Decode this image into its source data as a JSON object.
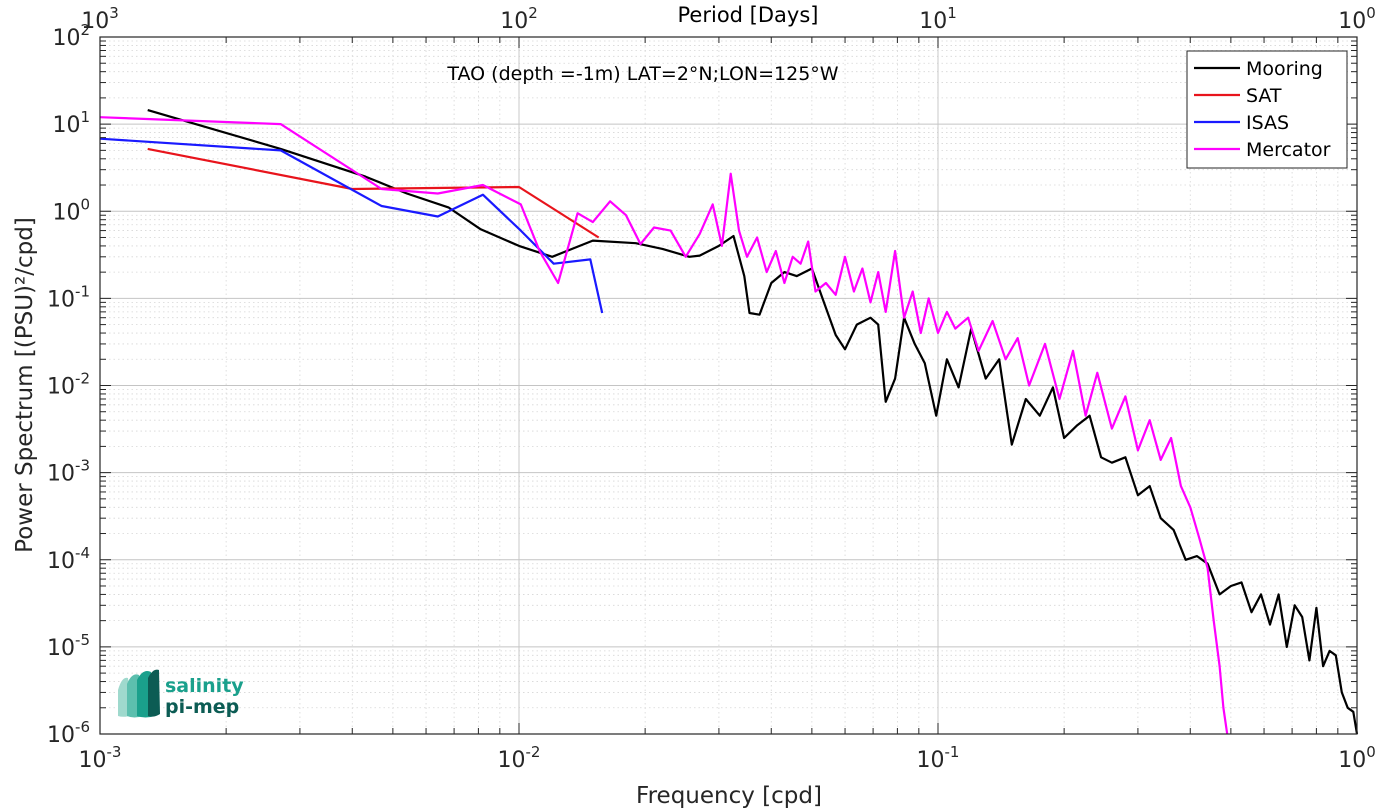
{
  "chart_data": {
    "type": "line",
    "xscale": "log",
    "yscale": "log",
    "xlabel": "Frequency [cpd]",
    "ylabel": "Power Spectrum [(PSU)²/cpd]",
    "top_xlabel": "Period [Days]",
    "annotation": "TAO (depth =-1m) LAT=2°N;LON=125°W",
    "xlim": [
      0.001,
      1
    ],
    "ylim": [
      1e-06,
      100
    ],
    "x_ticks": [
      {
        "value": 0.001,
        "base": "10",
        "exp": "-3"
      },
      {
        "value": 0.01,
        "base": "10",
        "exp": "-2"
      },
      {
        "value": 0.1,
        "base": "10",
        "exp": "-1"
      },
      {
        "value": 1,
        "base": "10",
        "exp": "0"
      }
    ],
    "top_ticks": [
      {
        "value": 0.001,
        "base": "10",
        "exp": "3"
      },
      {
        "value": 0.01,
        "base": "10",
        "exp": "2"
      },
      {
        "value": 0.1,
        "base": "10",
        "exp": "1"
      },
      {
        "value": 1,
        "base": "10",
        "exp": "0"
      }
    ],
    "y_ticks": [
      {
        "value": 100,
        "base": "10",
        "exp": "2"
      },
      {
        "value": 10,
        "base": "10",
        "exp": "1"
      },
      {
        "value": 1,
        "base": "10",
        "exp": "0"
      },
      {
        "value": 0.1,
        "base": "10",
        "exp": "-1"
      },
      {
        "value": 0.01,
        "base": "10",
        "exp": "-2"
      },
      {
        "value": 0.001,
        "base": "10",
        "exp": "-3"
      },
      {
        "value": 0.0001,
        "base": "10",
        "exp": "-4"
      },
      {
        "value": 1e-05,
        "base": "10",
        "exp": "-5"
      },
      {
        "value": 1e-06,
        "base": "10",
        "exp": "-6"
      }
    ],
    "grid": true,
    "legend_position": "top-right",
    "series": [
      {
        "name": "Mooring",
        "color": "#000000",
        "x": [
          0.0013,
          0.0027,
          0.0043,
          0.0054,
          0.0068,
          0.0081,
          0.01,
          0.012,
          0.015,
          0.019,
          0.022,
          0.0255,
          0.027,
          0.03,
          0.0325,
          0.0345,
          0.0355,
          0.0375,
          0.04,
          0.043,
          0.046,
          0.05,
          0.053,
          0.057,
          0.06,
          0.064,
          0.069,
          0.072,
          0.075,
          0.079,
          0.083,
          0.088,
          0.093,
          0.099,
          0.105,
          0.112,
          0.12,
          0.13,
          0.14,
          0.15,
          0.162,
          0.175,
          0.188,
          0.2,
          0.215,
          0.23,
          0.245,
          0.26,
          0.28,
          0.3,
          0.32,
          0.34,
          0.365,
          0.39,
          0.415,
          0.44,
          0.47,
          0.5,
          0.53,
          0.56,
          0.59,
          0.62,
          0.65,
          0.68,
          0.71,
          0.74,
          0.77,
          0.8,
          0.83,
          0.86,
          0.89,
          0.92,
          0.95,
          0.98,
          1.0
        ],
        "values": [
          14.5,
          5.2,
          2.5,
          1.6,
          1.1,
          0.62,
          0.4,
          0.3,
          0.46,
          0.43,
          0.37,
          0.3,
          0.31,
          0.4,
          0.52,
          0.18,
          0.068,
          0.065,
          0.15,
          0.2,
          0.18,
          0.22,
          0.1,
          0.038,
          0.026,
          0.05,
          0.06,
          0.05,
          0.0065,
          0.012,
          0.06,
          0.03,
          0.018,
          0.0045,
          0.02,
          0.0095,
          0.045,
          0.012,
          0.02,
          0.0021,
          0.007,
          0.0045,
          0.0095,
          0.0025,
          0.0035,
          0.0045,
          0.0015,
          0.0013,
          0.0015,
          0.00055,
          0.0007,
          0.0003,
          0.00022,
          0.0001,
          0.00011,
          9e-05,
          4e-05,
          5e-05,
          5.5e-05,
          2.5e-05,
          4e-05,
          1.8e-05,
          4e-05,
          1e-05,
          3e-05,
          2.2e-05,
          7e-06,
          2.8e-05,
          6e-06,
          9e-06,
          8e-06,
          3e-06,
          2e-06,
          1.8e-06,
          1e-06
        ]
      },
      {
        "name": "SAT",
        "color": "#e8141c",
        "x": [
          0.0013,
          0.004,
          0.01,
          0.0155
        ],
        "values": [
          5.2,
          1.8,
          1.9,
          0.5
        ]
      },
      {
        "name": "ISAS",
        "color": "#1a1aff",
        "x": [
          0.001,
          0.0027,
          0.0047,
          0.0064,
          0.0082,
          0.0101,
          0.0121,
          0.0148,
          0.0158
        ],
        "values": [
          6.8,
          5.0,
          1.15,
          0.87,
          1.55,
          0.6,
          0.25,
          0.28,
          0.068
        ]
      },
      {
        "name": "Mercator",
        "color": "#ff00ff",
        "x": [
          0.001,
          0.0027,
          0.0047,
          0.0064,
          0.0082,
          0.0101,
          0.0112,
          0.0124,
          0.0138,
          0.015,
          0.0165,
          0.018,
          0.0195,
          0.021,
          0.023,
          0.025,
          0.027,
          0.029,
          0.0305,
          0.032,
          0.0335,
          0.035,
          0.037,
          0.039,
          0.041,
          0.043,
          0.045,
          0.047,
          0.049,
          0.051,
          0.054,
          0.057,
          0.06,
          0.063,
          0.066,
          0.069,
          0.072,
          0.075,
          0.079,
          0.083,
          0.087,
          0.091,
          0.095,
          0.1,
          0.105,
          0.11,
          0.118,
          0.125,
          0.135,
          0.145,
          0.155,
          0.165,
          0.18,
          0.195,
          0.21,
          0.225,
          0.24,
          0.26,
          0.28,
          0.3,
          0.32,
          0.34,
          0.36,
          0.38,
          0.4,
          0.42,
          0.44,
          0.455,
          0.47,
          0.48,
          0.49
        ],
        "values": [
          12.0,
          10.0,
          1.8,
          1.6,
          2.0,
          1.2,
          0.35,
          0.15,
          0.95,
          0.75,
          1.3,
          0.9,
          0.42,
          0.65,
          0.6,
          0.3,
          0.55,
          1.2,
          0.4,
          2.7,
          0.6,
          0.3,
          0.5,
          0.2,
          0.35,
          0.15,
          0.3,
          0.25,
          0.45,
          0.12,
          0.15,
          0.11,
          0.3,
          0.12,
          0.22,
          0.09,
          0.2,
          0.07,
          0.35,
          0.06,
          0.12,
          0.04,
          0.1,
          0.04,
          0.07,
          0.045,
          0.06,
          0.025,
          0.055,
          0.02,
          0.035,
          0.01,
          0.03,
          0.007,
          0.025,
          0.0045,
          0.014,
          0.0032,
          0.0075,
          0.0018,
          0.004,
          0.0014,
          0.0025,
          0.0007,
          0.0004,
          0.00018,
          8e-05,
          2e-05,
          6e-06,
          2e-06,
          1e-06
        ]
      }
    ]
  },
  "logo": {
    "line1": "salinity",
    "line2": "pi-mep",
    "color_top": "#1aa08c",
    "color_bottom": "#0c5c54"
  }
}
